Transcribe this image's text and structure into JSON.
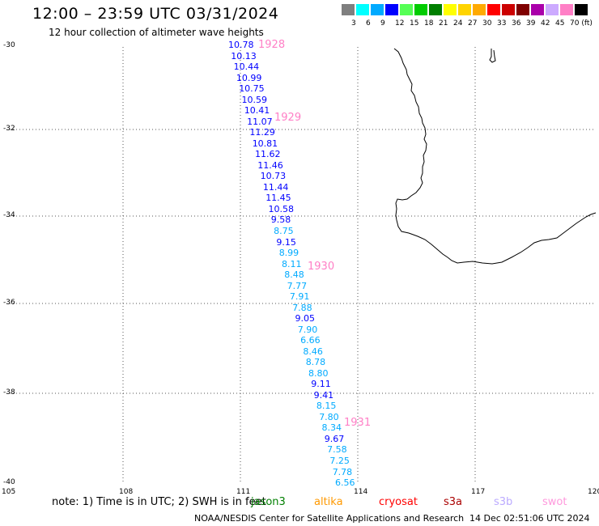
{
  "header": {
    "title": "12:00 – 23:59 UTC 03/31/2024",
    "subtitle": "12 hour collection of altimeter wave heights"
  },
  "legend": {
    "labels": [
      "3",
      "6",
      "9",
      "12",
      "15",
      "18",
      "21",
      "24",
      "27",
      "30",
      "33",
      "36",
      "39",
      "42",
      "45",
      "70 (ft)"
    ],
    "colors": [
      "#7f7f7f",
      "#00ffff",
      "#00aaff",
      "#0000ff",
      "#55ff55",
      "#00cc00",
      "#007f00",
      "#ffff00",
      "#ffd400",
      "#ffaa00",
      "#ff0000",
      "#cc0000",
      "#7f0000",
      "#aa00aa",
      "#ccaaff",
      "#ff7fc6",
      "#000000"
    ]
  },
  "map": {
    "lat_labels": [
      "-30",
      "-32",
      "-34",
      "-36",
      "-38",
      "-40"
    ],
    "lon_labels": [
      "105",
      "108",
      "111",
      "114",
      "117",
      "120"
    ],
    "pass_labels": [
      "1928",
      "1929",
      "1930",
      "1931"
    ],
    "wave_heights": [
      "10.78",
      "10.13",
      "10.44",
      "10.99",
      "10.75",
      "10.59",
      "10.41",
      "11.07",
      "11.29",
      "10.81",
      "11.62",
      "11.46",
      "10.73",
      "11.44",
      "11.45",
      "10.58",
      "9.58",
      "8.75",
      "9.15",
      "8.99",
      "8.11",
      "8.48",
      "7.77",
      "7.91",
      "7.88",
      "9.05",
      "7.90",
      "6.66",
      "8.46",
      "8.78",
      "8.80",
      "9.11",
      "9.41",
      "8.15",
      "7.80",
      "8.34",
      "9.67",
      "7.58",
      "7.25",
      "7.78",
      "6.56"
    ]
  },
  "footer": {
    "note": "note:  1) Time is in UTC; 2) SWH is in feet",
    "satellites": [
      {
        "name": "jason3",
        "color": "#007f00"
      },
      {
        "name": "altika",
        "color": "#ff9900"
      },
      {
        "name": "cryosat",
        "color": "#ff0000"
      },
      {
        "name": "s3a",
        "color": "#aa0000"
      },
      {
        "name": "s3b",
        "color": "#bbaaff"
      },
      {
        "name": "swot",
        "color": "#ff99dd"
      }
    ],
    "credit": "NOAA/NESDIS Center for Satellite Applications and Research",
    "timestamp": "14 Dec 02:51:06 UTC 2024"
  }
}
